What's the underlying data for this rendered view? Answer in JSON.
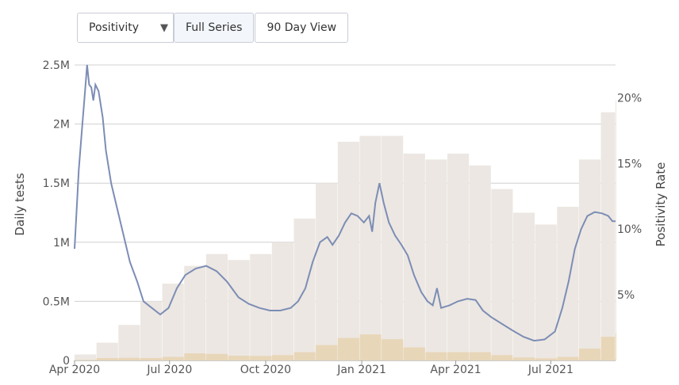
{
  "controls": {
    "metric_select": "Positivity",
    "full_series_label": "Full Series",
    "ninety_day_label": "90 Day View"
  },
  "colors": {
    "positivity_line": "#7c8db5",
    "daily_tests_bars": "#ece7e2",
    "positive_bars": "#e8d6b8",
    "grid": "#d0d0d0",
    "axis_text": "#555555"
  },
  "chart_data": {
    "type": "bar",
    "grid": true,
    "x_ticks": [
      "Apr 2020",
      "Jul 2020",
      "Oct 2020",
      "Jan 2021",
      "Apr 2021",
      "Jul 2021"
    ],
    "xlim": [
      "2020-04-01",
      "2021-09-01"
    ],
    "left_axis": {
      "label": "Daily tests",
      "ylim": [
        0,
        2500000
      ],
      "ticks": [
        "0",
        "0.5M",
        "1M",
        "1.5M",
        "2M",
        "2.5M"
      ]
    },
    "right_axis": {
      "label": "Positivity Rate",
      "ylim": [
        0,
        22.5
      ],
      "ticks": [
        "5%",
        "10%",
        "15%",
        "20%"
      ]
    },
    "series": [
      {
        "type": "line",
        "axis": "right",
        "points": [
          [
            "2020-04-01",
            8.5
          ],
          [
            "2020-04-05",
            14.5
          ],
          [
            "2020-04-08",
            17.5
          ],
          [
            "2020-04-11",
            20.5
          ],
          [
            "2020-04-13",
            22.5
          ],
          [
            "2020-04-15",
            21.0
          ],
          [
            "2020-04-17",
            20.8
          ],
          [
            "2020-04-19",
            19.8
          ],
          [
            "2020-04-21",
            21.0
          ],
          [
            "2020-04-24",
            20.5
          ],
          [
            "2020-04-28",
            18.5
          ],
          [
            "2020-05-01",
            16.0
          ],
          [
            "2020-05-06",
            13.5
          ],
          [
            "2020-05-12",
            11.5
          ],
          [
            "2020-05-18",
            9.5
          ],
          [
            "2020-05-24",
            7.5
          ],
          [
            "2020-05-31",
            6.0
          ],
          [
            "2020-06-06",
            4.5
          ],
          [
            "2020-06-14",
            4.0
          ],
          [
            "2020-06-22",
            3.5
          ],
          [
            "2020-06-30",
            4.0
          ],
          [
            "2020-07-08",
            5.5
          ],
          [
            "2020-07-16",
            6.5
          ],
          [
            "2020-07-26",
            7.0
          ],
          [
            "2020-08-05",
            7.2
          ],
          [
            "2020-08-15",
            6.8
          ],
          [
            "2020-08-25",
            6.0
          ],
          [
            "2020-09-05",
            4.8
          ],
          [
            "2020-09-15",
            4.3
          ],
          [
            "2020-09-25",
            4.0
          ],
          [
            "2020-10-05",
            3.8
          ],
          [
            "2020-10-15",
            3.8
          ],
          [
            "2020-10-25",
            4.0
          ],
          [
            "2020-11-01",
            4.5
          ],
          [
            "2020-11-08",
            5.5
          ],
          [
            "2020-11-15",
            7.5
          ],
          [
            "2020-11-22",
            9.0
          ],
          [
            "2020-11-29",
            9.4
          ],
          [
            "2020-12-04",
            8.8
          ],
          [
            "2020-12-10",
            9.5
          ],
          [
            "2020-12-16",
            10.5
          ],
          [
            "2020-12-22",
            11.2
          ],
          [
            "2020-12-28",
            11.0
          ],
          [
            "2021-01-03",
            10.5
          ],
          [
            "2021-01-08",
            11.0
          ],
          [
            "2021-01-11",
            9.8
          ],
          [
            "2021-01-14",
            12.0
          ],
          [
            "2021-01-18",
            13.5
          ],
          [
            "2021-01-22",
            12.0
          ],
          [
            "2021-01-27",
            10.5
          ],
          [
            "2021-02-02",
            9.5
          ],
          [
            "2021-02-08",
            8.8
          ],
          [
            "2021-02-14",
            8.0
          ],
          [
            "2021-02-20",
            6.5
          ],
          [
            "2021-02-27",
            5.2
          ],
          [
            "2021-03-05",
            4.5
          ],
          [
            "2021-03-10",
            4.2
          ],
          [
            "2021-03-14",
            5.5
          ],
          [
            "2021-03-18",
            4.0
          ],
          [
            "2021-03-26",
            4.2
          ],
          [
            "2021-04-03",
            4.5
          ],
          [
            "2021-04-12",
            4.7
          ],
          [
            "2021-04-20",
            4.6
          ],
          [
            "2021-04-27",
            3.8
          ],
          [
            "2021-05-05",
            3.3
          ],
          [
            "2021-05-15",
            2.8
          ],
          [
            "2021-05-25",
            2.3
          ],
          [
            "2021-06-05",
            1.8
          ],
          [
            "2021-06-15",
            1.5
          ],
          [
            "2021-06-25",
            1.6
          ],
          [
            "2021-07-05",
            2.2
          ],
          [
            "2021-07-12",
            4.0
          ],
          [
            "2021-07-18",
            6.0
          ],
          [
            "2021-07-24",
            8.5
          ],
          [
            "2021-07-30",
            10.0
          ],
          [
            "2021-08-05",
            11.0
          ],
          [
            "2021-08-12",
            11.3
          ],
          [
            "2021-08-19",
            11.2
          ],
          [
            "2021-08-25",
            11.0
          ],
          [
            "2021-08-29",
            10.6
          ],
          [
            "2021-09-01",
            10.6
          ]
        ]
      },
      {
        "name": "Daily tests",
        "type": "bar",
        "axis": "left",
        "points": [
          [
            "2020-04-01",
            50000
          ],
          [
            "2020-04-22",
            150000
          ],
          [
            "2020-05-13",
            300000
          ],
          [
            "2020-06-03",
            500000
          ],
          [
            "2020-06-24",
            650000
          ],
          [
            "2020-07-15",
            800000
          ],
          [
            "2020-08-05",
            900000
          ],
          [
            "2020-08-26",
            850000
          ],
          [
            "2020-09-16",
            900000
          ],
          [
            "2020-10-07",
            1000000
          ],
          [
            "2020-10-28",
            1200000
          ],
          [
            "2020-11-18",
            1500000
          ],
          [
            "2020-12-09",
            1850000
          ],
          [
            "2020-12-30",
            1900000
          ],
          [
            "2021-01-20",
            1900000
          ],
          [
            "2021-02-10",
            1750000
          ],
          [
            "2021-03-03",
            1700000
          ],
          [
            "2021-03-24",
            1750000
          ],
          [
            "2021-04-14",
            1650000
          ],
          [
            "2021-05-05",
            1450000
          ],
          [
            "2021-05-26",
            1250000
          ],
          [
            "2021-06-16",
            1150000
          ],
          [
            "2021-07-07",
            1300000
          ],
          [
            "2021-07-28",
            1700000
          ],
          [
            "2021-08-18",
            2100000
          ],
          [
            "2021-09-01",
            2200000
          ]
        ]
      },
      {
        "type": "bar",
        "axis": "left",
        "points": [
          [
            "2020-04-01",
            5000
          ],
          [
            "2020-04-22",
            20000
          ],
          [
            "2020-05-13",
            22000
          ],
          [
            "2020-06-03",
            20000
          ],
          [
            "2020-06-24",
            30000
          ],
          [
            "2020-07-15",
            60000
          ],
          [
            "2020-08-05",
            55000
          ],
          [
            "2020-08-26",
            40000
          ],
          [
            "2020-09-16",
            38000
          ],
          [
            "2020-10-07",
            45000
          ],
          [
            "2020-10-28",
            70000
          ],
          [
            "2020-11-18",
            130000
          ],
          [
            "2020-12-09",
            190000
          ],
          [
            "2020-12-30",
            220000
          ],
          [
            "2021-01-20",
            180000
          ],
          [
            "2021-02-10",
            110000
          ],
          [
            "2021-03-03",
            70000
          ],
          [
            "2021-03-24",
            70000
          ],
          [
            "2021-04-14",
            70000
          ],
          [
            "2021-05-05",
            45000
          ],
          [
            "2021-05-26",
            25000
          ],
          [
            "2021-06-16",
            18000
          ],
          [
            "2021-07-07",
            30000
          ],
          [
            "2021-07-28",
            100000
          ],
          [
            "2021-08-18",
            200000
          ],
          [
            "2021-09-01",
            230000
          ]
        ]
      }
    ]
  }
}
